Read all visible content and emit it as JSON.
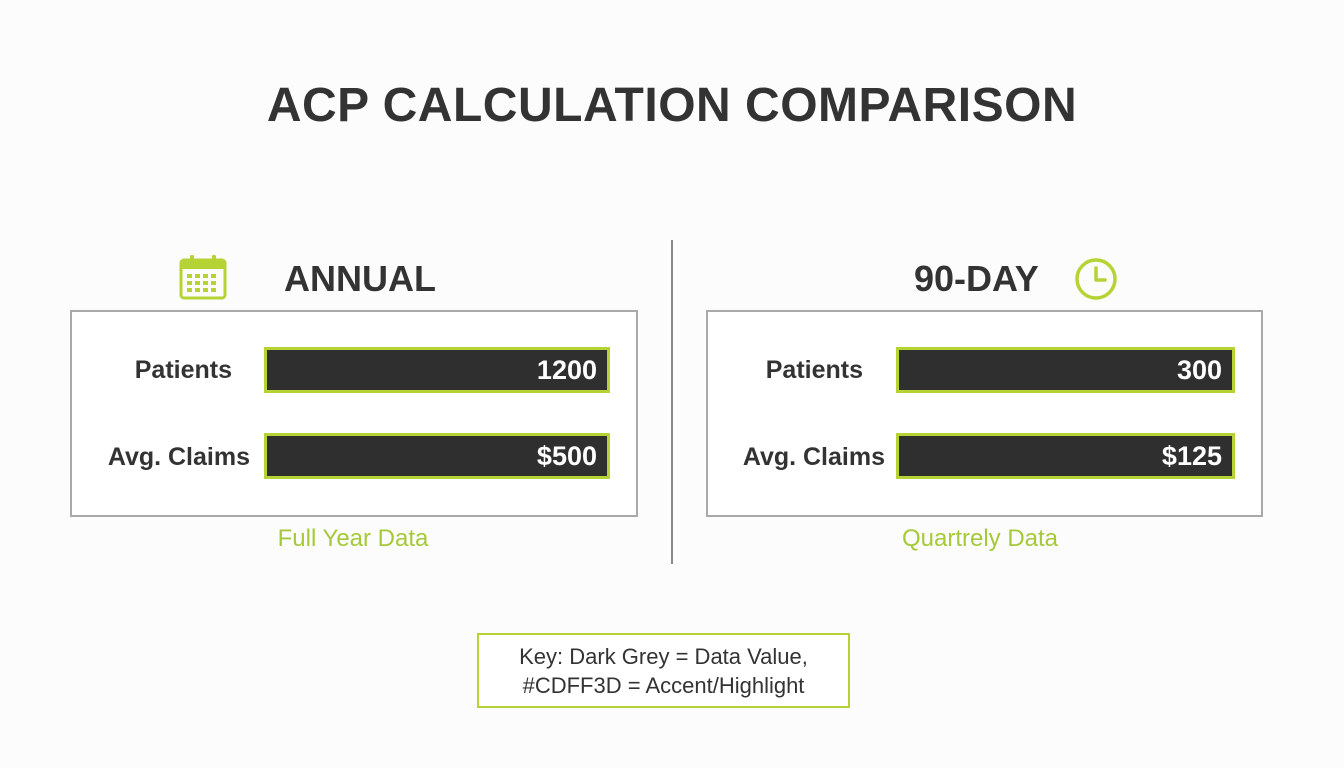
{
  "title": "ACP CALCULATION COMPARISON",
  "colors": {
    "dark": "#2f2f2f",
    "accent": "#b5d334",
    "caption": "#a6c93a"
  },
  "annual": {
    "heading": "ANNUAL",
    "icon": "calendar-icon",
    "rows": [
      {
        "label": "Patients",
        "value": "1200"
      },
      {
        "label": "Avg. Claims",
        "value": "$500"
      }
    ],
    "caption": "Full Year Data"
  },
  "ninety_day": {
    "heading": "90-DAY",
    "icon": "clock-icon",
    "rows": [
      {
        "label": "Patients",
        "value": "300"
      },
      {
        "label": "Avg. Claims",
        "value": "$125"
      }
    ],
    "caption": "Quartrely Data"
  },
  "key": {
    "line1": "Key: Dark Grey = Data Value,",
    "line2": "#CDFF3D = Accent/Highlight"
  }
}
